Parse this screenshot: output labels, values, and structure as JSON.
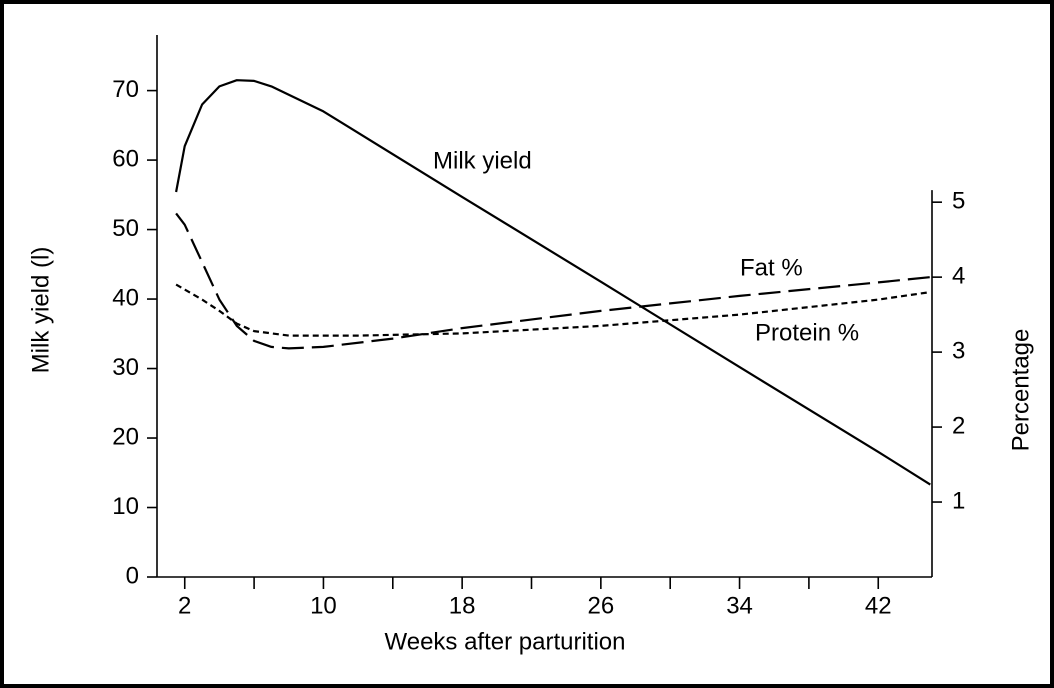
{
  "chart_data": {
    "type": "line",
    "xlabel": "Weeks after parturition",
    "ylabel": "Milk yield (l)",
    "y2label": "Percentage",
    "xlim": [
      0.4,
      45.1
    ],
    "xticks": [
      2,
      10,
      18,
      26,
      34,
      42
    ],
    "xminorticks": [
      6,
      14,
      22,
      30,
      38
    ],
    "ylim": [
      0,
      78
    ],
    "yticks": [
      0,
      10,
      20,
      30,
      40,
      50,
      60,
      70
    ],
    "y2lim": [
      0,
      7.23
    ],
    "y2ticks": [
      1,
      2,
      3,
      4,
      5
    ],
    "series": [
      {
        "name": "Milk yield",
        "color": "#000000",
        "dash": "none",
        "x": [
          1.5,
          2,
          3,
          4,
          5,
          6,
          7,
          8,
          10,
          18,
          26,
          34,
          42,
          45
        ],
        "values": [
          55.4,
          62,
          68,
          70.6,
          71.5,
          71.4,
          70.6,
          69.4,
          67,
          54.7,
          42.5,
          30.2,
          18,
          13.3
        ]
      },
      {
        "name": "Fat %",
        "color": "#000000",
        "dash": "22,8",
        "axis": "y2",
        "x": [
          1.5,
          2,
          3,
          4,
          5,
          6,
          7,
          8,
          10,
          14,
          18,
          26,
          34,
          42,
          45
        ],
        "values": [
          4.85,
          4.7,
          4.2,
          3.7,
          3.35,
          3.15,
          3.07,
          3.05,
          3.07,
          3.18,
          3.32,
          3.55,
          3.75,
          3.93,
          4.0
        ]
      },
      {
        "name": "Protein %",
        "color": "#000000",
        "dash": "6,4",
        "axis": "y2",
        "x": [
          1.5,
          3,
          4,
          5,
          6,
          8,
          12,
          18,
          26,
          34,
          42,
          45
        ],
        "values": [
          3.9,
          3.7,
          3.55,
          3.38,
          3.28,
          3.22,
          3.22,
          3.25,
          3.35,
          3.5,
          3.7,
          3.8
        ]
      }
    ]
  }
}
